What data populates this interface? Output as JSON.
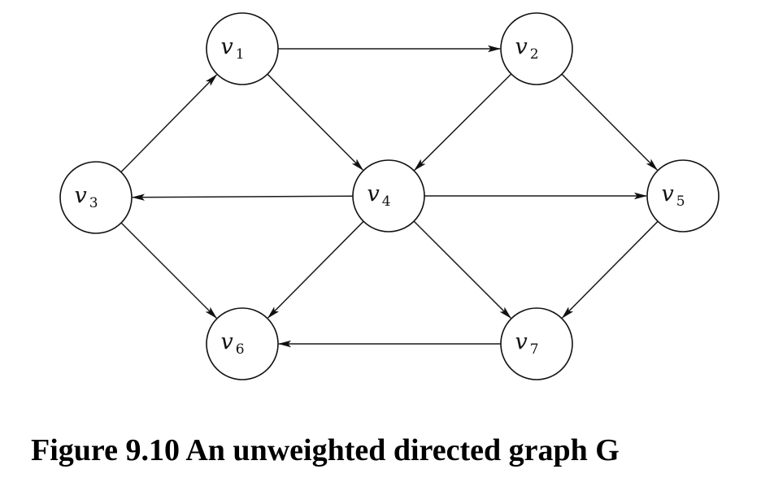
{
  "caption": "Figure 9.10 An unweighted directed graph G",
  "graph": {
    "directed": true,
    "weighted": false,
    "nodes": [
      {
        "id": "v1",
        "name": "v",
        "sub": "1"
      },
      {
        "id": "v2",
        "name": "v",
        "sub": "2"
      },
      {
        "id": "v3",
        "name": "v",
        "sub": "3"
      },
      {
        "id": "v4",
        "name": "v",
        "sub": "4"
      },
      {
        "id": "v5",
        "name": "v",
        "sub": "5"
      },
      {
        "id": "v6",
        "name": "v",
        "sub": "6"
      },
      {
        "id": "v7",
        "name": "v",
        "sub": "7"
      }
    ],
    "edges": [
      {
        "from": "v1",
        "to": "v2"
      },
      {
        "from": "v1",
        "to": "v4"
      },
      {
        "from": "v2",
        "to": "v4"
      },
      {
        "from": "v2",
        "to": "v5"
      },
      {
        "from": "v3",
        "to": "v1"
      },
      {
        "from": "v3",
        "to": "v6"
      },
      {
        "from": "v4",
        "to": "v3"
      },
      {
        "from": "v4",
        "to": "v5"
      },
      {
        "from": "v4",
        "to": "v6"
      },
      {
        "from": "v4",
        "to": "v7"
      },
      {
        "from": "v5",
        "to": "v7"
      },
      {
        "from": "v7",
        "to": "v6"
      }
    ]
  }
}
